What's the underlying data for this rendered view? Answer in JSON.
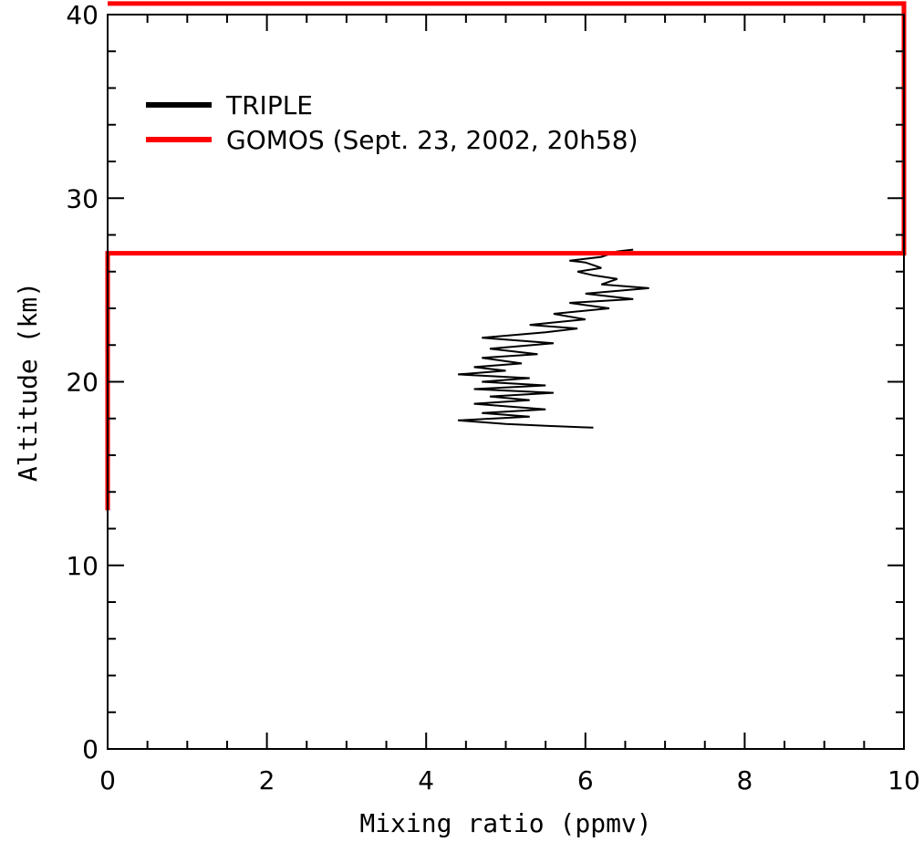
{
  "chart_data": {
    "type": "line",
    "xlabel": "Mixing ratio (ppmv)",
    "ylabel": "Altitude (km)",
    "xlim": [
      0,
      10
    ],
    "ylim": [
      0,
      40
    ],
    "x_ticks": [
      0,
      2,
      4,
      6,
      8,
      10
    ],
    "x_tick_labels": [
      "0",
      "2",
      "4",
      "6",
      "8",
      "10"
    ],
    "y_ticks": [
      0,
      10,
      20,
      30,
      40
    ],
    "y_tick_labels": [
      "0",
      "10",
      "20",
      "30",
      "40"
    ],
    "x_minor_step": 0.5,
    "y_minor_step": 2,
    "grid": false,
    "legend_position": "top-left",
    "series": [
      {
        "name": "TRIPLE",
        "color": "#000000",
        "points": [
          [
            6.1,
            17.5
          ],
          [
            5.5,
            17.6
          ],
          [
            5.0,
            17.7
          ],
          [
            4.4,
            17.9
          ],
          [
            5.3,
            18.1
          ],
          [
            4.7,
            18.3
          ],
          [
            5.5,
            18.5
          ],
          [
            4.6,
            18.8
          ],
          [
            5.3,
            19.0
          ],
          [
            4.8,
            19.2
          ],
          [
            5.6,
            19.4
          ],
          [
            4.6,
            19.6
          ],
          [
            5.5,
            19.8
          ],
          [
            4.7,
            20.0
          ],
          [
            5.3,
            20.2
          ],
          [
            4.4,
            20.4
          ],
          [
            5.0,
            20.6
          ],
          [
            4.6,
            20.8
          ],
          [
            5.2,
            21.0
          ],
          [
            4.7,
            21.3
          ],
          [
            5.4,
            21.5
          ],
          [
            4.8,
            21.8
          ],
          [
            5.6,
            22.1
          ],
          [
            4.7,
            22.4
          ],
          [
            5.5,
            22.7
          ],
          [
            5.9,
            22.9
          ],
          [
            5.3,
            23.1
          ],
          [
            6.0,
            23.4
          ],
          [
            5.6,
            23.7
          ],
          [
            6.3,
            24.0
          ],
          [
            5.8,
            24.3
          ],
          [
            6.6,
            24.5
          ],
          [
            6.0,
            24.8
          ],
          [
            6.8,
            25.1
          ],
          [
            6.2,
            25.3
          ],
          [
            6.4,
            25.6
          ],
          [
            6.1,
            25.8
          ],
          [
            5.9,
            26.0
          ],
          [
            6.2,
            26.2
          ],
          [
            6.0,
            26.5
          ],
          [
            5.8,
            26.6
          ],
          [
            6.2,
            26.8
          ],
          [
            6.4,
            27.1
          ],
          [
            6.6,
            27.2
          ]
        ]
      },
      {
        "name": "GOMOS (Sept. 23, 2002, 20h58)",
        "color": "#ff0000",
        "points": [
          [
            0.0,
            13.0
          ],
          [
            0.0,
            27.0
          ],
          [
            10.0,
            27.0
          ],
          [
            10.0,
            27.0
          ],
          [
            10.0,
            40.6
          ],
          [
            0.0,
            40.6
          ]
        ]
      }
    ]
  }
}
